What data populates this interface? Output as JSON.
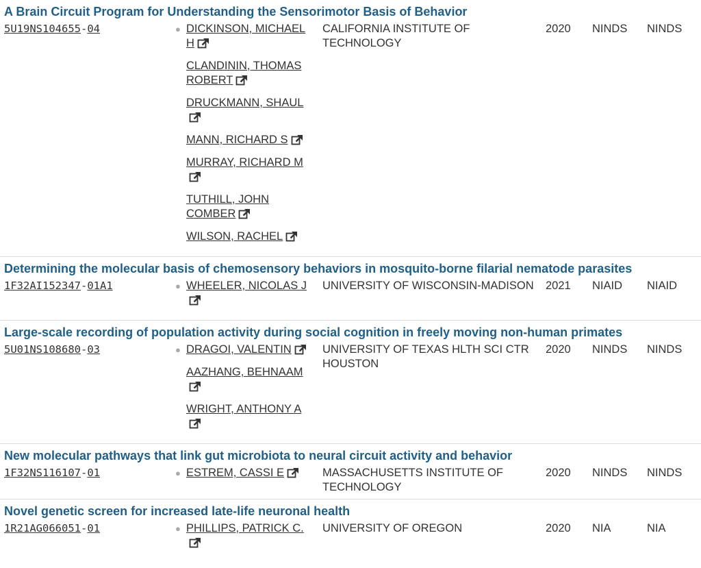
{
  "projects": [
    {
      "title": "A Brain Circuit Program for Understanding the Sensorimotor Basis of Behavior",
      "project_number": [
        "5",
        "U19",
        "NS104655",
        "04"
      ],
      "pis": [
        {
          "name": "DICKINSON, MICHAEL H",
          "contact": true
        },
        {
          "name": "CLANDININ, THOMAS ROBERT",
          "contact": false
        },
        {
          "name": "DRUCKMANN, SHAUL",
          "contact": false
        },
        {
          "name": "MANN, RICHARD S",
          "contact": false
        },
        {
          "name": "MURRAY, RICHARD M",
          "contact": false
        },
        {
          "name": "TUTHILL, JOHN COMBER",
          "contact": false
        },
        {
          "name": "WILSON, RACHEL",
          "contact": false
        }
      ],
      "organization": "CALIFORNIA INSTITUTE OF TECHNOLOGY",
      "fiscal_year": "2020",
      "funding_ic": "NINDS",
      "admin_ic": "NINDS"
    },
    {
      "title": "Determining the molecular basis of chemosensory behaviors in mosquito-borne filarial nematode parasites",
      "project_number": [
        "1",
        "F32",
        "AI152347",
        "01A1"
      ],
      "pis": [
        {
          "name": "WHEELER, NICOLAS J",
          "contact": true
        }
      ],
      "organization": "UNIVERSITY OF WISCONSIN-MADISON",
      "fiscal_year": "2021",
      "funding_ic": "NIAID",
      "admin_ic": "NIAID"
    },
    {
      "title": "Large-scale recording of population activity during social cognition in freely moving non-human primates",
      "project_number": [
        "5",
        "U01",
        "NS108680",
        "03"
      ],
      "pis": [
        {
          "name": "DRAGOI, VALENTIN",
          "contact": true
        },
        {
          "name": "AAZHANG, BEHNAAM",
          "contact": false
        },
        {
          "name": "WRIGHT, ANTHONY A",
          "contact": false
        }
      ],
      "organization": "UNIVERSITY OF TEXAS HLTH SCI CTR HOUSTON",
      "fiscal_year": "2020",
      "funding_ic": "NINDS",
      "admin_ic": "NINDS"
    },
    {
      "title": "New molecular pathways that link gut microbiota to neural circuit activity and behavior",
      "project_number": [
        "1",
        "F32",
        "NS116107",
        "01"
      ],
      "pis": [
        {
          "name": "ESTREM, CASSI E",
          "contact": true
        }
      ],
      "organization": "MASSACHUSETTS INSTITUTE OF TECHNOLOGY",
      "fiscal_year": "2020",
      "funding_ic": "NINDS",
      "admin_ic": "NINDS"
    },
    {
      "title": "Novel genetic screen for increased late-life neuronal health",
      "project_number": [
        "1",
        "R21",
        "AG066051",
        "01"
      ],
      "pis": [
        {
          "name": "PHILLIPS, PATRICK C.",
          "contact": true
        }
      ],
      "organization": "UNIVERSITY OF OREGON",
      "fiscal_year": "2020",
      "funding_ic": "NIA",
      "admin_ic": "NIA"
    }
  ]
}
